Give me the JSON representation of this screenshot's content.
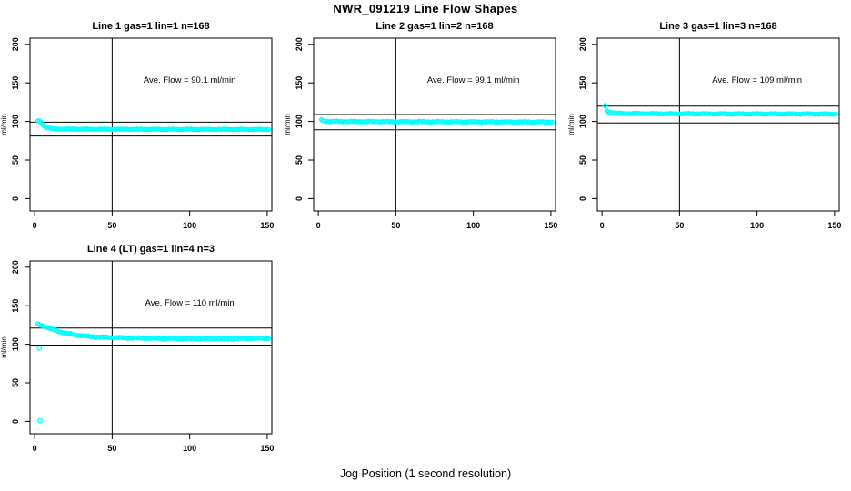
{
  "figure": {
    "title": "NWR_091219  Line Flow Shapes",
    "xlabel": "Jog Position (1 second resolution)",
    "ylabel": "ml/min",
    "background": "#ffffff",
    "point_color": "#00ffff",
    "line_color": "#000000"
  },
  "chart_data": [
    {
      "type": "scatter",
      "title": "Line 1 gas=1 lin=1 n=168",
      "annotation": "Ave. Flow =  90.1  ml/min",
      "ave_flow": 90.1,
      "n": 168,
      "ref_lines_h": [
        99.1,
        81.1
      ],
      "ref_line_v": 50,
      "x_ticks": [
        0,
        50,
        100,
        150
      ],
      "y_ticks": [
        0,
        50,
        100,
        150,
        200
      ],
      "xlim": [
        -3,
        153
      ],
      "ylim": [
        -16,
        208
      ],
      "curve": [
        [
          2,
          100.8
        ],
        [
          3,
          101
        ],
        [
          4,
          99
        ],
        [
          6,
          94.5
        ],
        [
          8,
          92
        ],
        [
          11,
          90.8
        ],
        [
          16,
          90.2
        ],
        [
          30,
          90
        ],
        [
          80,
          89.8
        ],
        [
          151,
          89.7
        ]
      ],
      "outliers": [],
      "noise": 0.5
    },
    {
      "type": "scatter",
      "title": "Line 2 gas=1 lin=2 n=168",
      "annotation": "Ave. Flow =  99.1  ml/min",
      "ave_flow": 99.1,
      "n": 168,
      "ref_lines_h": [
        109.0,
        89.2
      ],
      "ref_line_v": 50,
      "x_ticks": [
        0,
        50,
        100,
        150
      ],
      "y_ticks": [
        0,
        50,
        100,
        150,
        200
      ],
      "xlim": [
        -3,
        153
      ],
      "ylim": [
        -16,
        208
      ],
      "curve": [
        [
          2,
          102.5
        ],
        [
          3,
          101
        ],
        [
          5,
          100.3
        ],
        [
          9,
          100
        ],
        [
          40,
          99.8
        ],
        [
          100,
          99.5
        ],
        [
          151,
          99.3
        ]
      ],
      "outliers": [],
      "noise": 0.65
    },
    {
      "type": "scatter",
      "title": "Line 3 gas=1 lin=3 n=168",
      "annotation": "Ave. Flow =  109  ml/min",
      "ave_flow": 109,
      "n": 168,
      "ref_lines_h": [
        119.9,
        98.1
      ],
      "ref_line_v": 50,
      "x_ticks": [
        0,
        50,
        100,
        150
      ],
      "y_ticks": [
        0,
        50,
        100,
        150,
        200
      ],
      "xlim": [
        -3,
        153
      ],
      "ylim": [
        -16,
        208
      ],
      "curve": [
        [
          3,
          113.5
        ],
        [
          5,
          112
        ],
        [
          8,
          111
        ],
        [
          14,
          110.3
        ],
        [
          40,
          110
        ],
        [
          100,
          109.8
        ],
        [
          151,
          109.7
        ]
      ],
      "outliers": [
        [
          2,
          120.5
        ]
      ],
      "noise": 0.6
    },
    {
      "type": "scatter",
      "title": "Line 4 (LT) gas=1 lin=4 n=3",
      "annotation": "Ave. Flow =  110  ml/min",
      "ave_flow": 110,
      "n": 3,
      "ref_lines_h": [
        121.0,
        99.0
      ],
      "ref_line_v": 50,
      "x_ticks": [
        0,
        50,
        100,
        150
      ],
      "y_ticks": [
        0,
        50,
        100,
        150,
        200
      ],
      "xlim": [
        -3,
        153
      ],
      "ylim": [
        -16,
        208
      ],
      "curve": [
        [
          2,
          126
        ],
        [
          4,
          124.8
        ],
        [
          6,
          123.5
        ],
        [
          9,
          121
        ],
        [
          12,
          119
        ],
        [
          16,
          116.5
        ],
        [
          20,
          114.5
        ],
        [
          26,
          112.3
        ],
        [
          33,
          110.5
        ],
        [
          42,
          109.3
        ],
        [
          55,
          108.5
        ],
        [
          75,
          107.8
        ],
        [
          110,
          107.3
        ],
        [
          130,
          107.6
        ],
        [
          151,
          107.8
        ]
      ],
      "outliers": [
        [
          3,
          95
        ],
        [
          3.5,
          1
        ]
      ],
      "noise": 0.9
    }
  ]
}
